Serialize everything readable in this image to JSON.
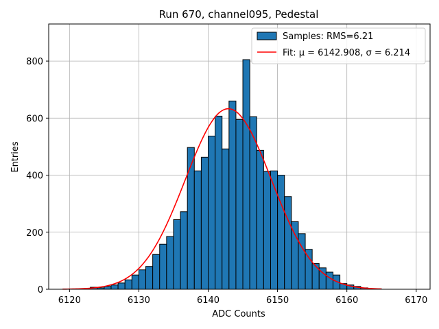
{
  "chart_data": {
    "type": "bar",
    "title": "Run 670, channel095, Pedestal",
    "xlabel": "ADC Counts",
    "ylabel": "Entries",
    "xlim": [
      6117,
      6172
    ],
    "ylim": [
      0,
      930
    ],
    "grid": true,
    "legend_position": "top-right",
    "x_ticks": [
      6120,
      6130,
      6140,
      6150,
      6160,
      6170
    ],
    "y_ticks": [
      0,
      200,
      400,
      600,
      800
    ],
    "histogram": {
      "name": "Samples: RMS=6.21",
      "color": "#1f77b4",
      "edge_color": "#000000",
      "bin_width": 1,
      "bin_start": [
        6119,
        6120,
        6121,
        6122,
        6123,
        6124,
        6125,
        6126,
        6127,
        6128,
        6129,
        6130,
        6131,
        6132,
        6133,
        6134,
        6135,
        6136,
        6137,
        6138,
        6139,
        6140,
        6141,
        6142,
        6143,
        6144,
        6145,
        6146,
        6147,
        6148,
        6149,
        6150,
        6151,
        6152,
        6153,
        6154,
        6155,
        6156,
        6157,
        6158,
        6159,
        6160,
        6161,
        6162,
        6163,
        6164
      ],
      "values": [
        0,
        0,
        1,
        1,
        7,
        5,
        10,
        15,
        22,
        33,
        50,
        68,
        80,
        122,
        158,
        185,
        244,
        272,
        497,
        415,
        463,
        537,
        607,
        492,
        660,
        595,
        805,
        605,
        487,
        413,
        415,
        400,
        325,
        237,
        195,
        140,
        90,
        75,
        60,
        50,
        20,
        15,
        10,
        5,
        2,
        1
      ]
    },
    "fit": {
      "name": "Fit: μ = 6142.908, σ = 6.214",
      "color": "#ff0000",
      "mu": 6142.908,
      "sigma": 6.214,
      "amplitude": 633,
      "x_range": [
        6119,
        6165
      ]
    }
  }
}
